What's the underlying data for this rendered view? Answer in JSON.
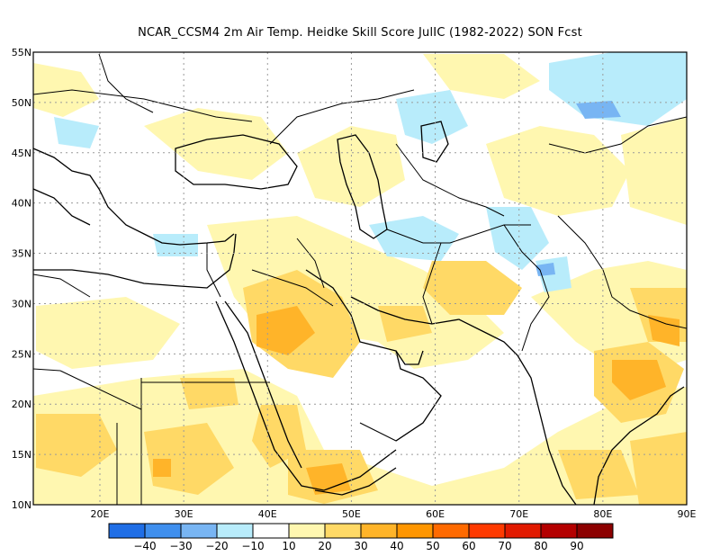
{
  "title": "NCAR_CCSM4  2m Air Temp. Heidke Skill Score JulIC (1982-2022) SON Fcst",
  "lat_labels": [
    "55N",
    "50N",
    "45N",
    "40N",
    "35N",
    "30N",
    "25N",
    "20N",
    "15N",
    "10N"
  ],
  "lon_labels": [
    "20E",
    "30E",
    "40E",
    "50E",
    "60E",
    "70E",
    "80E",
    "90E"
  ],
  "colorbar": {
    "labels": [
      "−40",
      "−30",
      "−20",
      "−10",
      "10",
      "20",
      "30",
      "40",
      "50",
      "60",
      "70",
      "80",
      "90"
    ],
    "colors": [
      "#1f6ee6",
      "#3f8fee",
      "#78b5f3",
      "#b8ecfb",
      "#ffffff",
      "#fff7b0",
      "#ffd966",
      "#ffb429",
      "#ff9600",
      "#ff6a00",
      "#ff3a00",
      "#e11a00",
      "#b40000",
      "#8c0000"
    ]
  }
}
